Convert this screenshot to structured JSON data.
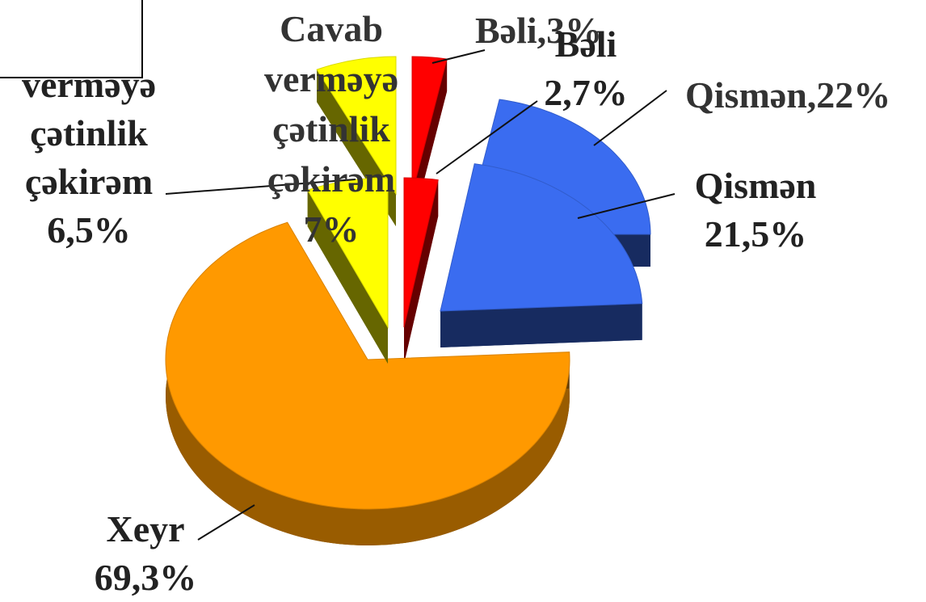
{
  "chart_data": [
    {
      "type": "pie",
      "categories": [
        "Bəli",
        "Qismən",
        "Xeyr",
        "Cavab verməyə çətinlik çəkirəm"
      ],
      "values": [
        2.7,
        21.5,
        69.3,
        6.5
      ],
      "value_labels": [
        "2,7%",
        "21,5%",
        "69,3%",
        "6,5%"
      ],
      "colors": [
        "#ff0000",
        "#3a6cf0",
        "#ff9900",
        "#ffff00"
      ]
    },
    {
      "type": "pie",
      "values": [
        3,
        22,
        68,
        7
      ],
      "value_labels": [
        "Bəli,3%",
        "Qismən,22%",
        null,
        "Cavab verməyə çətinlik çəkirəm 7%"
      ],
      "colors": [
        "#ff0000",
        "#3a6cf0",
        "#ff9900",
        "#ffff00"
      ]
    }
  ]
}
